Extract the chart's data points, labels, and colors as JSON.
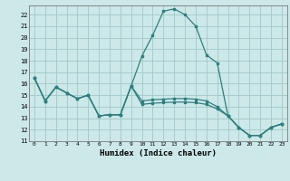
{
  "xlabel": "Humidex (Indice chaleur)",
  "background_color": "#cde8e8",
  "grid_color": "#a0c8c8",
  "line_color": "#2e7f7f",
  "xlim": [
    -0.5,
    23.5
  ],
  "ylim": [
    11,
    22.8
  ],
  "xticks": [
    0,
    1,
    2,
    3,
    4,
    5,
    6,
    7,
    8,
    9,
    10,
    11,
    12,
    13,
    14,
    15,
    16,
    17,
    18,
    19,
    20,
    21,
    22,
    23
  ],
  "yticks": [
    11,
    12,
    13,
    14,
    15,
    16,
    17,
    18,
    19,
    20,
    21,
    22
  ],
  "series1": [
    [
      0,
      16.5
    ],
    [
      1,
      14.5
    ],
    [
      2,
      15.7
    ],
    [
      3,
      15.2
    ],
    [
      4,
      14.7
    ],
    [
      5,
      15.0
    ],
    [
      6,
      13.2
    ],
    [
      7,
      13.3
    ],
    [
      8,
      13.3
    ],
    [
      9,
      15.8
    ],
    [
      10,
      18.4
    ],
    [
      11,
      20.2
    ],
    [
      12,
      22.3
    ],
    [
      13,
      22.5
    ],
    [
      14,
      22.0
    ],
    [
      15,
      21.0
    ],
    [
      16,
      18.5
    ],
    [
      17,
      17.8
    ],
    [
      18,
      13.2
    ],
    [
      19,
      12.2
    ],
    [
      20,
      11.5
    ],
    [
      21,
      11.5
    ],
    [
      22,
      12.2
    ],
    [
      23,
      12.5
    ]
  ],
  "series2": [
    [
      0,
      16.5
    ],
    [
      1,
      14.5
    ],
    [
      2,
      15.7
    ],
    [
      3,
      15.2
    ],
    [
      4,
      14.7
    ],
    [
      5,
      15.0
    ],
    [
      6,
      13.2
    ],
    [
      7,
      13.3
    ],
    [
      8,
      13.3
    ],
    [
      9,
      15.8
    ],
    [
      10,
      14.2
    ],
    [
      11,
      14.3
    ],
    [
      12,
      14.35
    ],
    [
      13,
      14.4
    ],
    [
      14,
      14.4
    ],
    [
      15,
      14.35
    ],
    [
      16,
      14.2
    ],
    [
      17,
      13.8
    ],
    [
      18,
      13.2
    ],
    [
      19,
      12.2
    ],
    [
      20,
      11.5
    ],
    [
      21,
      11.5
    ],
    [
      22,
      12.2
    ],
    [
      23,
      12.5
    ]
  ],
  "series3": [
    [
      0,
      16.5
    ],
    [
      1,
      14.5
    ],
    [
      2,
      15.7
    ],
    [
      3,
      15.2
    ],
    [
      4,
      14.7
    ],
    [
      5,
      15.0
    ],
    [
      6,
      13.2
    ],
    [
      7,
      13.3
    ],
    [
      8,
      13.3
    ],
    [
      9,
      15.8
    ],
    [
      10,
      14.5
    ],
    [
      11,
      14.6
    ],
    [
      12,
      14.65
    ],
    [
      13,
      14.7
    ],
    [
      14,
      14.7
    ],
    [
      15,
      14.65
    ],
    [
      16,
      14.5
    ],
    [
      17,
      14.0
    ],
    [
      18,
      13.2
    ],
    [
      19,
      12.2
    ],
    [
      20,
      11.5
    ],
    [
      21,
      11.5
    ],
    [
      22,
      12.2
    ],
    [
      23,
      12.5
    ]
  ]
}
